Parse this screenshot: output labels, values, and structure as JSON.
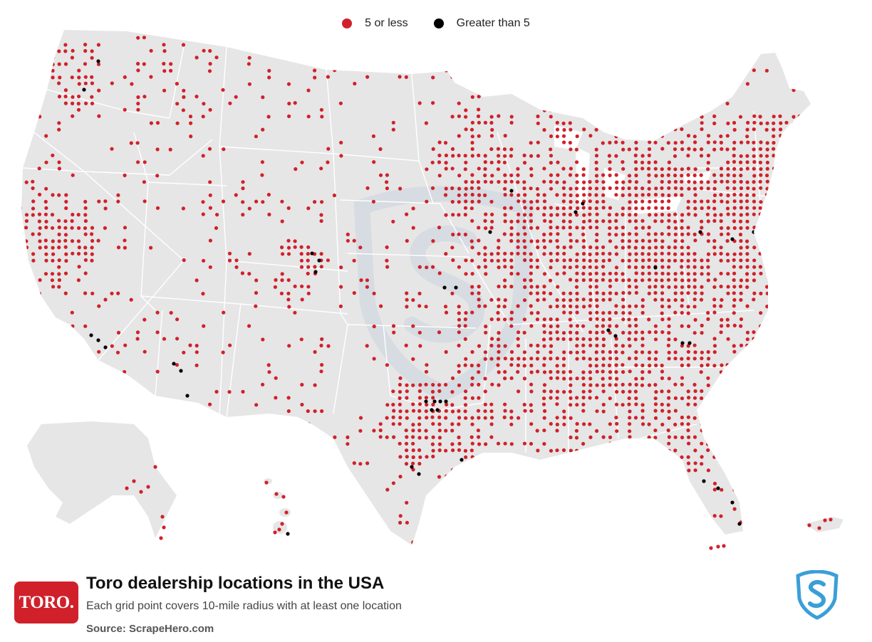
{
  "legend": {
    "items": [
      {
        "label": "5 or less",
        "color": "#d0212a"
      },
      {
        "label": "Greater than 5",
        "color": "#000000"
      }
    ]
  },
  "colors": {
    "land": "#e6e6e6",
    "state_border": "#ffffff",
    "low": "#d0212a",
    "high": "#000000",
    "watermark": "#c9d4de",
    "brand": "#d0212a",
    "scrapehero": "#3a9fd8"
  },
  "map": {
    "regions": [
      "contiguous-usa",
      "alaska",
      "hawaii",
      "puerto-rico"
    ]
  },
  "footer": {
    "logo_text": "TORO.",
    "title": "Toro dealership locations in the USA",
    "subtitle": "Each grid point covers 10-mile radius with at least one location",
    "source_prefix": "Source: ",
    "source_name": "ScrapeHero.com",
    "scrapehero_icon": "scrapehero-shield-icon"
  }
}
